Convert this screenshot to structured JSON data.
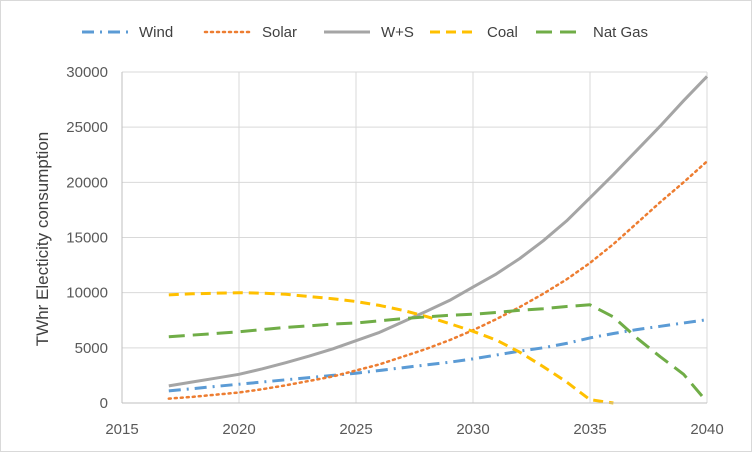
{
  "chart_data": {
    "type": "line",
    "title": "",
    "xlabel": "",
    "ylabel": "TWhr Electicity consumption",
    "xlim": [
      2015,
      2040
    ],
    "ylim": [
      0,
      30000
    ],
    "x_ticks": [
      2015,
      2020,
      2025,
      2030,
      2035,
      2040
    ],
    "y_ticks": [
      0,
      5000,
      10000,
      15000,
      20000,
      25000,
      30000
    ],
    "grid": "vertical and horizontal",
    "legend_position": "top",
    "series": [
      {
        "name": "Wind",
        "color": "#5b9bd5",
        "dash": "dash-dot",
        "x": [
          2017,
          2018,
          2019,
          2020,
          2021,
          2022,
          2023,
          2024,
          2025,
          2026,
          2027,
          2028,
          2029,
          2030,
          2031,
          2032,
          2033,
          2034,
          2035,
          2036,
          2037,
          2038,
          2039,
          2040
        ],
        "y": [
          1100,
          1300,
          1500,
          1700,
          1900,
          2100,
          2300,
          2500,
          2700,
          2950,
          3200,
          3450,
          3700,
          4000,
          4350,
          4700,
          5000,
          5400,
          5900,
          6300,
          6650,
          6950,
          7250,
          7550
        ]
      },
      {
        "name": "Solar",
        "color": "#ed7d31",
        "dash": "dot",
        "x": [
          2017,
          2018,
          2019,
          2020,
          2021,
          2022,
          2023,
          2024,
          2025,
          2026,
          2027,
          2028,
          2029,
          2030,
          2031,
          2032,
          2033,
          2034,
          2035,
          2036,
          2037,
          2038,
          2039,
          2040
        ],
        "y": [
          400,
          550,
          750,
          950,
          1250,
          1600,
          2000,
          2400,
          2950,
          3500,
          4200,
          4900,
          5700,
          6600,
          7600,
          8700,
          9900,
          11200,
          12700,
          14400,
          16300,
          18200,
          20000,
          21900
        ]
      },
      {
        "name": "W+S",
        "color": "#a5a5a5",
        "dash": "solid",
        "x": [
          2017,
          2018,
          2019,
          2020,
          2021,
          2022,
          2023,
          2024,
          2025,
          2026,
          2027,
          2028,
          2029,
          2030,
          2031,
          2032,
          2033,
          2034,
          2035,
          2036,
          2037,
          2038,
          2039,
          2040
        ],
        "y": [
          1550,
          1900,
          2250,
          2600,
          3100,
          3650,
          4250,
          4900,
          5650,
          6400,
          7350,
          8300,
          9300,
          10500,
          11700,
          13100,
          14700,
          16500,
          18600,
          20700,
          22900,
          25100,
          27400,
          29600
        ]
      },
      {
        "name": "Coal",
        "color": "#ffc000",
        "dash": "dash",
        "x": [
          2017,
          2018,
          2019,
          2020,
          2021,
          2022,
          2023,
          2024,
          2025,
          2026,
          2027,
          2028,
          2029,
          2030,
          2031,
          2032,
          2033,
          2034,
          2035,
          2036
        ],
        "y": [
          9800,
          9900,
          9950,
          10000,
          9950,
          9850,
          9650,
          9450,
          9200,
          8850,
          8400,
          7850,
          7200,
          6500,
          5700,
          4600,
          3300,
          1900,
          300,
          0
        ]
      },
      {
        "name": "Nat Gas",
        "color": "#70ad47",
        "dash": "long-dash",
        "x": [
          2017,
          2018,
          2019,
          2020,
          2021,
          2022,
          2023,
          2024,
          2025,
          2026,
          2027,
          2028,
          2029,
          2030,
          2031,
          2032,
          2033,
          2034,
          2035,
          2036,
          2037,
          2038,
          2039,
          2040
        ],
        "y": [
          6000,
          6150,
          6300,
          6450,
          6650,
          6850,
          7000,
          7150,
          7250,
          7450,
          7650,
          7800,
          7950,
          8050,
          8200,
          8400,
          8550,
          8750,
          8900,
          7800,
          5900,
          4200,
          2600,
          100
        ]
      }
    ]
  }
}
